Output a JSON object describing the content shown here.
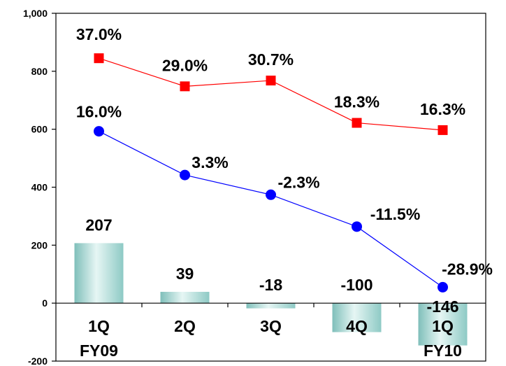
{
  "chart_data": {
    "type": "bar+line",
    "categories": [
      {
        "line1": "1Q",
        "line2": "FY09"
      },
      {
        "line1": "2Q",
        "line2": ""
      },
      {
        "line1": "3Q",
        "line2": ""
      },
      {
        "line1": "4Q",
        "line2": ""
      },
      {
        "line1": "1Q",
        "line2": "FY10"
      }
    ],
    "bars": {
      "values": [
        207,
        39,
        -18,
        -100,
        -146
      ],
      "labels": [
        "207",
        "39",
        "-18",
        "-100",
        "-146"
      ],
      "color": "#a8d8d4"
    },
    "lines": [
      {
        "color": "#ff0000",
        "marker": "square",
        "values": [
          845,
          748,
          768,
          622,
          597
        ],
        "labels": [
          "37.0%",
          "29.0%",
          "30.7%",
          "18.3%",
          "16.3%"
        ]
      },
      {
        "color": "#0000ff",
        "marker": "circle",
        "values": [
          593,
          442,
          374,
          264,
          55
        ],
        "labels": [
          "16.0%",
          "3.3%",
          "-2.3%",
          "-11.5%",
          "-28.9%"
        ]
      }
    ],
    "y_axis": {
      "min": -200,
      "max": 1000,
      "ticks": [
        -200,
        0,
        200,
        400,
        600,
        800,
        1000
      ],
      "tick_labels": [
        "-200",
        "0",
        "200",
        "400",
        "600",
        "800",
        "1,000"
      ]
    },
    "grid": false,
    "legend": "none"
  }
}
